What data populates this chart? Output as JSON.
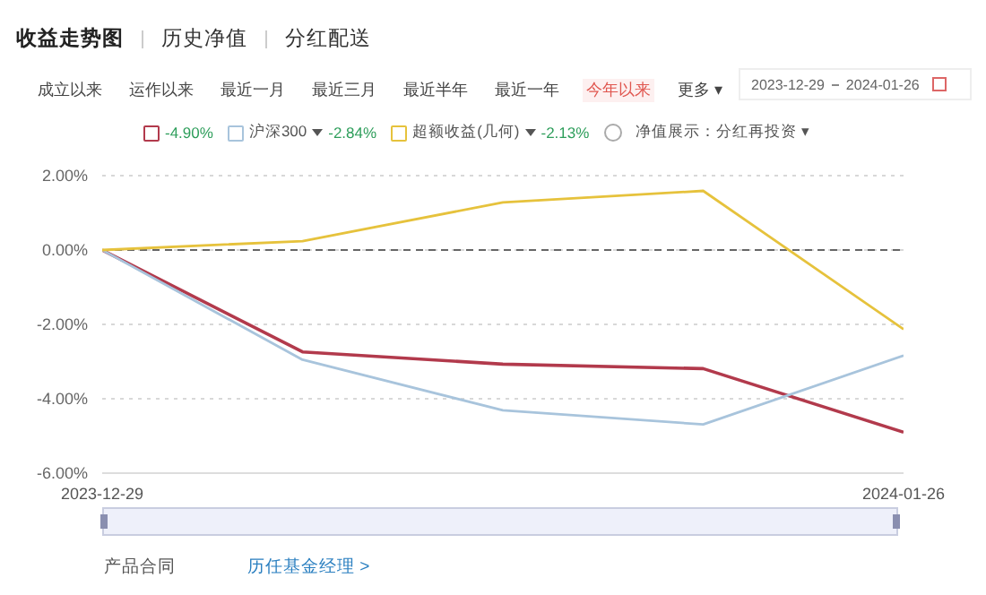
{
  "chart_data": {
    "type": "line",
    "title": "收益走势图",
    "x": [
      "2023-12-29",
      "2024-01-05",
      "2024-01-12",
      "2024-01-19",
      "2024-01-26"
    ],
    "series": [
      {
        "color": "#b23a4c",
        "values": [
          0,
          -2.74,
          -3.07,
          -3.19,
          -4.9
        ]
      },
      {
        "name": "沪深300",
        "color": "#a8c4dc",
        "values": [
          0,
          -2.95,
          -4.31,
          -4.69,
          -2.84
        ]
      },
      {
        "name": "超额收益(几何)",
        "color": "#e6c23c",
        "values": [
          0,
          0.24,
          1.28,
          1.59,
          -2.13
        ]
      }
    ],
    "xlim": [
      "2023-12-29",
      "2024-01-26"
    ],
    "xticks": [
      "2023-12-29",
      "2024-01-26"
    ],
    "ylim": [
      -6,
      2
    ],
    "yticks": [
      {
        "value": 2,
        "label": "2.00%"
      },
      {
        "value": 0,
        "label": "0.00%"
      },
      {
        "value": -2,
        "label": "-2.00%"
      },
      {
        "value": -4,
        "label": "-4.00%"
      },
      {
        "value": -6,
        "label": "-6.00%"
      }
    ],
    "grid": "y",
    "legend": "top",
    "marker": "none",
    "line_style": "solid",
    "ref_lines": [
      {
        "axis": "y",
        "value": 0,
        "color": "#666666",
        "line_style": "dashed"
      }
    ],
    "annotations": [
      "-4.90%",
      "-2.84%",
      "-2.13%",
      "历史净值",
      "分红配送",
      "成立以来",
      "运作以来",
      "最近一月",
      "最近三月",
      "最近半年",
      "最近一年",
      "今年以来",
      "更多 ▾",
      "2023-12-29",
      "2024-01-26",
      "净值展示：分红再投资 ▾",
      "产品合同",
      "历任基金经理 >"
    ]
  }
}
